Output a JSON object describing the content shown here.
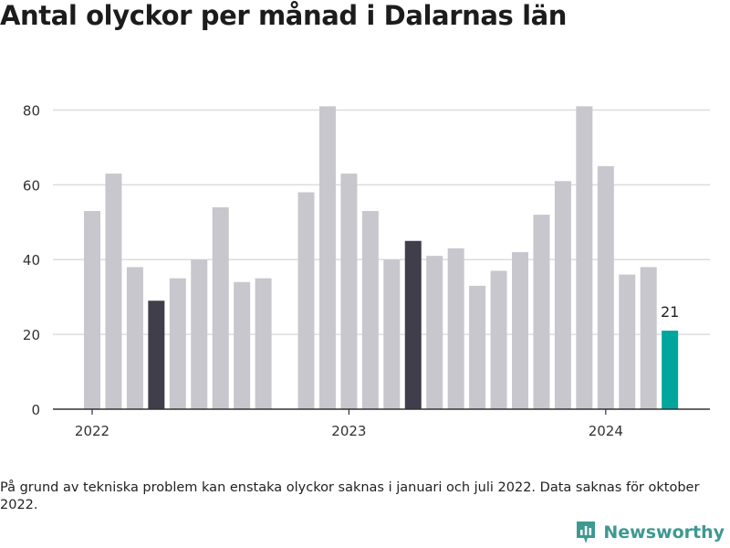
{
  "title": "Antal olyckor per månad i Dalarnas län",
  "footnote": "På grund av tekniska problem kan enstaka olyckor saknas i januari och juli 2022. Data saknas för oktober 2022.",
  "brand": {
    "name": "Newsworthy",
    "icon": "newsworthy-logo-icon"
  },
  "colors": {
    "default_bar": "#c8c7cd",
    "highlight_bar": "#3f3e4a",
    "current_bar": "#00a69c",
    "gridline": "#dddddd",
    "axis": "#333333"
  },
  "chart_data": {
    "type": "bar",
    "title": "Antal olyckor per månad i Dalarnas län",
    "xlabel": "",
    "ylabel": "",
    "ylim": [
      0,
      85
    ],
    "yticks": [
      0,
      20,
      40,
      60,
      80
    ],
    "grid": true,
    "xtick_labels": [
      {
        "label": "2022",
        "month": "2022-01"
      },
      {
        "label": "2023",
        "month": "2023-01"
      },
      {
        "label": "2024",
        "month": "2024-01"
      }
    ],
    "months": [
      "2022-01",
      "2022-02",
      "2022-03",
      "2022-04",
      "2022-05",
      "2022-06",
      "2022-07",
      "2022-08",
      "2022-09",
      "2022-10",
      "2022-11",
      "2022-12",
      "2023-01",
      "2023-02",
      "2023-03",
      "2023-04",
      "2023-05",
      "2023-06",
      "2023-07",
      "2023-08",
      "2023-09",
      "2023-10",
      "2023-11",
      "2023-12",
      "2024-01",
      "2024-02",
      "2024-03",
      "2024-04"
    ],
    "values": [
      53,
      63,
      38,
      29,
      35,
      40,
      54,
      34,
      35,
      null,
      58,
      81,
      63,
      53,
      40,
      45,
      41,
      43,
      33,
      37,
      42,
      52,
      61,
      81,
      65,
      36,
      38,
      21
    ],
    "highlight": [
      "2022-04",
      "2023-04"
    ],
    "current": "2024-04",
    "value_labels": [
      {
        "month": "2024-04",
        "text": "21"
      }
    ]
  }
}
